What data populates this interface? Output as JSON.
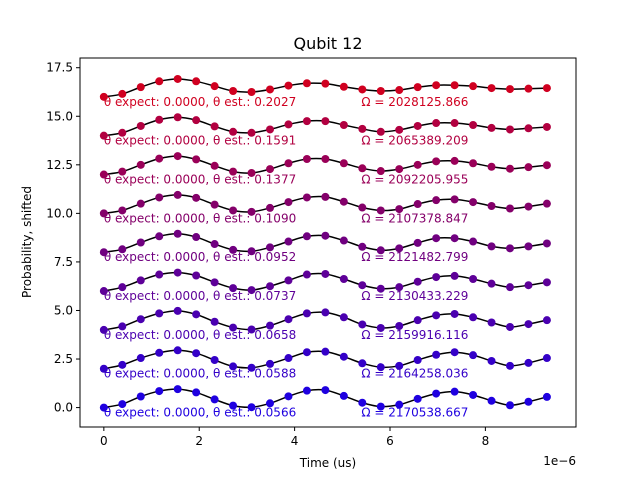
{
  "chart_data": {
    "type": "scatter",
    "title": "Qubit 12",
    "xlabel": "Time (us)",
    "ylabel": "Probability, shifted",
    "x_offset_label": "1e−6",
    "xlim": [
      -0.5,
      9.9
    ],
    "ylim": [
      -1.0,
      18.0
    ],
    "x_ticks": [
      0,
      2,
      4,
      6,
      8
    ],
    "x_tick_labels": [
      "0",
      "2",
      "4",
      "6",
      "8"
    ],
    "y_ticks": [
      0.0,
      2.5,
      5.0,
      7.5,
      10.0,
      12.5,
      15.0,
      17.5
    ],
    "y_tick_labels": [
      "0.0",
      "2.5",
      "5.0",
      "7.5",
      "10.0",
      "12.5",
      "15.0",
      "17.5"
    ],
    "x": [
      0.0,
      0.3871,
      0.7742,
      1.1613,
      1.5484,
      1.9355,
      2.3226,
      2.7097,
      3.0968,
      3.4839,
      3.871,
      4.2581,
      4.6452,
      5.0323,
      5.4194,
      5.8065,
      6.1935,
      6.5806,
      6.9677,
      7.3548,
      7.7419,
      8.129,
      8.5161,
      8.9032,
      9.2903
    ],
    "fit_line_color": "#000000",
    "series": [
      {
        "name": "offset 0",
        "offset": 0.0,
        "color": "#1f00e0",
        "values": [
          0.0,
          0.18,
          0.57,
          0.85,
          0.95,
          0.78,
          0.42,
          0.1,
          0.02,
          0.22,
          0.58,
          0.87,
          0.9,
          0.6,
          0.25,
          0.05,
          0.15,
          0.45,
          0.72,
          0.82,
          0.65,
          0.35,
          0.12,
          0.3,
          0.55
        ],
        "annotation_left": "θ expect: 0.0000, θ est.: 0.0566",
        "annotation_right": "Ω = 2170538.667"
      },
      {
        "name": "offset 2",
        "offset": 2.0,
        "color": "#3400c8",
        "values": [
          2.0,
          2.2,
          2.55,
          2.82,
          2.95,
          2.8,
          2.45,
          2.12,
          2.05,
          2.25,
          2.55,
          2.85,
          2.88,
          2.62,
          2.28,
          2.08,
          2.15,
          2.45,
          2.72,
          2.85,
          2.7,
          2.4,
          2.15,
          2.3,
          2.55
        ],
        "annotation_left": "θ expect: 0.0000, θ est.: 0.0588",
        "annotation_right": "Ω = 2164258.036"
      },
      {
        "name": "offset 4",
        "offset": 4.0,
        "color": "#4a00b0",
        "values": [
          4.0,
          4.18,
          4.55,
          4.85,
          4.98,
          4.8,
          4.42,
          4.12,
          4.02,
          4.22,
          4.55,
          4.85,
          4.9,
          4.65,
          4.28,
          4.1,
          4.2,
          4.5,
          4.75,
          4.82,
          4.65,
          4.38,
          4.15,
          4.3,
          4.5
        ],
        "annotation_left": "θ expect: 0.0000, θ est.: 0.0658",
        "annotation_right": "Ω = 2159916.116"
      },
      {
        "name": "offset 6",
        "offset": 6.0,
        "color": "#5e0098",
        "values": [
          6.0,
          6.2,
          6.55,
          6.85,
          6.95,
          6.8,
          6.45,
          6.15,
          6.05,
          6.25,
          6.55,
          6.85,
          6.88,
          6.62,
          6.3,
          6.12,
          6.2,
          6.48,
          6.72,
          6.78,
          6.62,
          6.38,
          6.2,
          6.3,
          6.45
        ],
        "annotation_left": "θ expect: 0.0000, θ est.: 0.0737",
        "annotation_right": "Ω = 2130433.229"
      },
      {
        "name": "offset 8",
        "offset": 8.0,
        "color": "#700080",
        "values": [
          8.0,
          8.15,
          8.5,
          8.82,
          8.95,
          8.78,
          8.42,
          8.12,
          8.05,
          8.25,
          8.55,
          8.82,
          8.85,
          8.6,
          8.28,
          8.1,
          8.2,
          8.48,
          8.72,
          8.72,
          8.55,
          8.3,
          8.2,
          8.3,
          8.45
        ],
        "annotation_left": "θ expect: 0.0000, θ est.: 0.0952",
        "annotation_right": "Ω = 2121482.799"
      },
      {
        "name": "offset 10",
        "offset": 10.0,
        "color": "#84006a",
        "values": [
          10.0,
          10.15,
          10.5,
          10.82,
          10.95,
          10.8,
          10.45,
          10.15,
          10.08,
          10.28,
          10.58,
          10.82,
          10.85,
          10.6,
          10.3,
          10.15,
          10.22,
          10.48,
          10.68,
          10.72,
          10.58,
          10.38,
          10.25,
          10.35,
          10.5
        ],
        "annotation_left": "θ expect: 0.0000, θ est.: 0.1090",
        "annotation_right": "Ω = 2107378.847"
      },
      {
        "name": "offset 12",
        "offset": 12.0,
        "color": "#9a0058",
        "values": [
          12.0,
          12.15,
          12.5,
          12.82,
          12.95,
          12.78,
          12.45,
          12.15,
          12.08,
          12.28,
          12.58,
          12.8,
          12.8,
          12.58,
          12.32,
          12.18,
          12.28,
          12.5,
          12.68,
          12.7,
          12.58,
          12.4,
          12.3,
          12.38,
          12.48
        ],
        "annotation_left": "θ expect: 0.0000, θ est.: 0.1377",
        "annotation_right": "Ω = 2092205.955"
      },
      {
        "name": "offset 14",
        "offset": 14.0,
        "color": "#b20040",
        "values": [
          14.0,
          14.15,
          14.5,
          14.82,
          14.95,
          14.8,
          14.48,
          14.2,
          14.15,
          14.32,
          14.58,
          14.75,
          14.75,
          14.55,
          14.35,
          14.2,
          14.3,
          14.5,
          14.65,
          14.65,
          14.55,
          14.4,
          14.32,
          14.38,
          14.45
        ],
        "annotation_left": "θ expect: 0.0000, θ est.: 0.1591",
        "annotation_right": "Ω = 2065389.209"
      },
      {
        "name": "offset 16",
        "offset": 16.0,
        "color": "#d00020",
        "values": [
          16.0,
          16.15,
          16.5,
          16.8,
          16.92,
          16.8,
          16.55,
          16.3,
          16.25,
          16.38,
          16.58,
          16.7,
          16.68,
          16.52,
          16.38,
          16.3,
          16.35,
          16.5,
          16.6,
          16.6,
          16.55,
          16.45,
          16.4,
          16.42,
          16.45
        ],
        "annotation_left": "θ expect: 0.0000, θ est.: 0.2027",
        "annotation_right": "Ω = 2028125.866"
      }
    ]
  }
}
